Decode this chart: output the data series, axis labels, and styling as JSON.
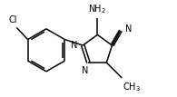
{
  "background_color": "#ffffff",
  "line_color": "#000000",
  "line_width": 1.1,
  "font_size": 7.0,
  "figsize": [
    1.95,
    1.07
  ],
  "dpi": 100,
  "xlim": [
    0,
    1.95
  ],
  "ylim": [
    0,
    1.07
  ]
}
